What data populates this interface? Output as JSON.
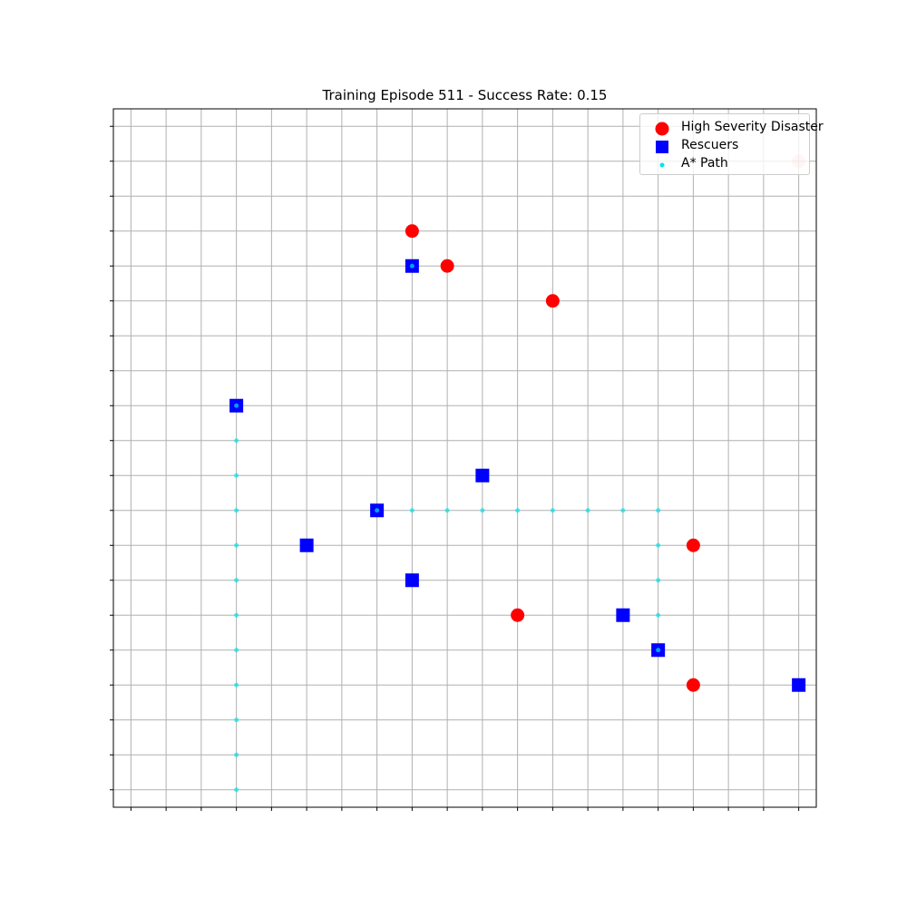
{
  "chart_data": {
    "type": "scatter",
    "title": "Training Episode 511 - Success Rate: 0.15",
    "xlabel": "",
    "ylabel": "",
    "xlim": [
      -0.5,
      19.5
    ],
    "ylim": [
      -0.5,
      19.5
    ],
    "grid": true,
    "tick_labels_visible": false,
    "legend_position": "upper right",
    "series": [
      {
        "name": "High Severity Disaster",
        "marker": "circle",
        "color": "#ff0000",
        "points": [
          [
            8,
            16
          ],
          [
            9,
            15
          ],
          [
            12,
            14
          ],
          [
            16,
            7
          ],
          [
            11,
            5
          ],
          [
            16,
            3
          ],
          [
            19,
            18
          ]
        ]
      },
      {
        "name": "Rescuers",
        "marker": "square",
        "color": "#0000ff",
        "points": [
          [
            8,
            15
          ],
          [
            3,
            11
          ],
          [
            10,
            9
          ],
          [
            7,
            8
          ],
          [
            5,
            7
          ],
          [
            8,
            6
          ],
          [
            14,
            5
          ],
          [
            15,
            4
          ],
          [
            19,
            3
          ]
        ]
      },
      {
        "name": "A* Path",
        "marker": "dot",
        "color": "#00e5ee",
        "points": [
          [
            3,
            11
          ],
          [
            3,
            10
          ],
          [
            3,
            9
          ],
          [
            3,
            8
          ],
          [
            3,
            7
          ],
          [
            3,
            6
          ],
          [
            3,
            5
          ],
          [
            3,
            4
          ],
          [
            3,
            3
          ],
          [
            3,
            2
          ],
          [
            3,
            1
          ],
          [
            3,
            0
          ],
          [
            7,
            8
          ],
          [
            8,
            8
          ],
          [
            9,
            8
          ],
          [
            10,
            8
          ],
          [
            11,
            8
          ],
          [
            12,
            8
          ],
          [
            13,
            8
          ],
          [
            14,
            8
          ],
          [
            15,
            8
          ],
          [
            15,
            7
          ],
          [
            15,
            6
          ],
          [
            15,
            5
          ],
          [
            15,
            4
          ],
          [
            8,
            15
          ]
        ]
      }
    ]
  },
  "colors": {
    "grid": "#b0b0b0",
    "axis": "#000000"
  }
}
